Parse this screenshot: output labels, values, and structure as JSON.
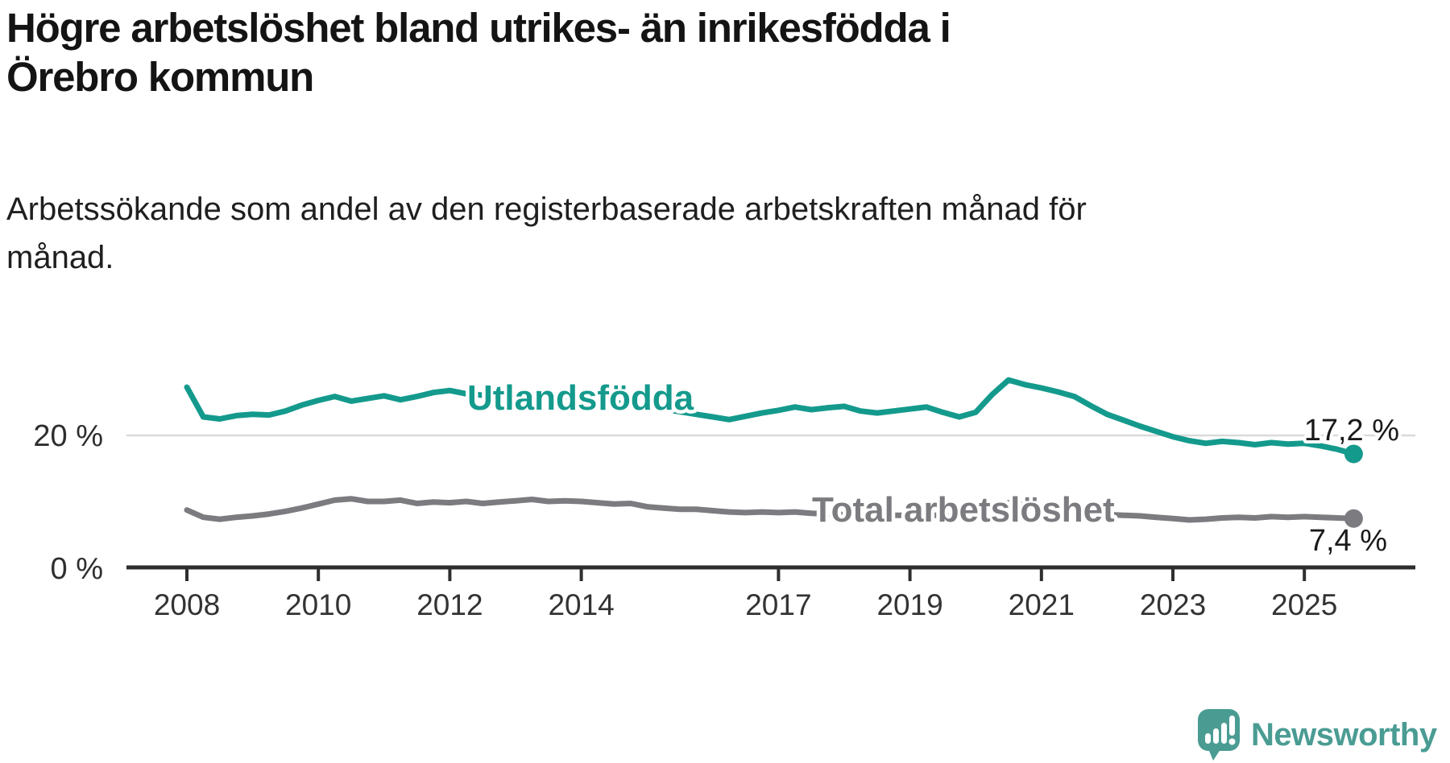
{
  "header": {
    "title_lines": [
      "Högre arbetslöshet bland utrikes- än inrikesfödda i",
      "Örebro kommun"
    ],
    "subtitle_lines": [
      "Arbetssökande som andel av den registerbaserade arbetskraften månad för",
      "månad."
    ]
  },
  "chart_data": {
    "type": "line",
    "title": "Högre arbetslöshet bland utrikes- än inrikesfödda i Örebro kommun",
    "subtitle": "Arbetssökande som andel av den registerbaserade arbetskraften månad för månad.",
    "unit": "%",
    "x_start_year": 2008,
    "x_step_years": 0.25,
    "x_end": "2025 (höst)",
    "ylim": [
      0,
      30
    ],
    "grid": "single gridline at 20 %",
    "x_axis": {
      "ticks": [
        2008,
        2010,
        2012,
        2014,
        2017,
        2019,
        2021,
        2023,
        2025
      ]
    },
    "y_ticks": [
      {
        "value": 0,
        "label": "0 %"
      },
      {
        "value": 20,
        "label": "20 %"
      }
    ],
    "series": [
      {
        "name": "Utlandsfödda",
        "color": "#149a8d",
        "end_value": 17.2,
        "end_label": "17,2 %",
        "values": [
          27.3,
          22.8,
          22.5,
          23.0,
          23.2,
          23.1,
          23.7,
          24.6,
          25.3,
          25.9,
          25.2,
          25.6,
          26.0,
          25.4,
          25.9,
          26.5,
          26.8,
          26.3,
          26.1,
          26.5,
          26.4,
          26.1,
          26.3,
          25.9,
          25.8,
          25.3,
          25.0,
          24.7,
          24.4,
          24.0,
          23.6,
          23.2,
          22.8,
          22.4,
          22.9,
          23.4,
          23.8,
          24.3,
          23.9,
          24.2,
          24.4,
          23.7,
          23.4,
          23.7,
          24.0,
          24.3,
          23.5,
          22.8,
          23.5,
          26.2,
          28.4,
          27.7,
          27.2,
          26.6,
          25.9,
          24.5,
          23.2,
          22.3,
          21.4,
          20.6,
          19.8,
          19.2,
          18.8,
          19.1,
          18.9,
          18.6,
          18.9,
          18.7,
          18.8,
          18.4,
          17.9,
          17.2
        ]
      },
      {
        "name": "Total arbetslöshet",
        "color": "#7b7b80",
        "end_value": 7.4,
        "end_label": "7,4 %",
        "values": [
          8.7,
          7.6,
          7.3,
          7.6,
          7.8,
          8.1,
          8.5,
          9.0,
          9.6,
          10.2,
          10.4,
          10.0,
          10.0,
          10.2,
          9.7,
          9.9,
          9.8,
          10.0,
          9.7,
          9.9,
          10.1,
          10.3,
          10.0,
          10.1,
          10.0,
          9.8,
          9.6,
          9.7,
          9.2,
          9.0,
          8.8,
          8.8,
          8.6,
          8.4,
          8.3,
          8.4,
          8.3,
          8.4,
          8.2,
          8.1,
          8.0,
          7.9,
          7.8,
          7.9,
          7.9,
          8.0,
          7.8,
          7.7,
          8.0,
          9.2,
          9.8,
          9.5,
          9.2,
          8.9,
          8.5,
          8.2,
          8.0,
          7.9,
          7.8,
          7.6,
          7.4,
          7.2,
          7.3,
          7.5,
          7.6,
          7.5,
          7.7,
          7.6,
          7.7,
          7.6,
          7.5,
          7.4
        ]
      }
    ]
  },
  "logo": {
    "brand": "Newsworthy"
  }
}
